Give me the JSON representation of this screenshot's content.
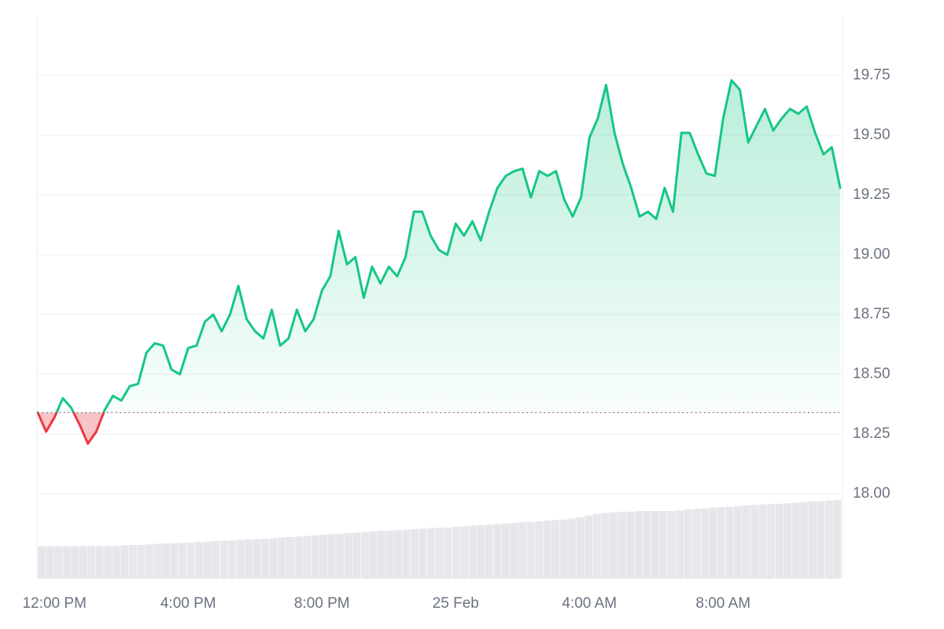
{
  "chart_data": {
    "type": "line",
    "categories": [
      null,
      null,
      "12:00 PM",
      null,
      null,
      null,
      null,
      null,
      null,
      null,
      null,
      null,
      null,
      null,
      null,
      null,
      null,
      null,
      "4:00 PM",
      null,
      null,
      null,
      null,
      null,
      null,
      null,
      null,
      null,
      null,
      null,
      null,
      null,
      null,
      null,
      "8:00 PM",
      null,
      null,
      null,
      null,
      null,
      null,
      null,
      null,
      null,
      null,
      null,
      null,
      null,
      null,
      null,
      "25 Feb",
      null,
      null,
      null,
      null,
      null,
      null,
      null,
      null,
      null,
      null,
      null,
      null,
      null,
      null,
      null,
      "4:00 AM",
      null,
      null,
      null,
      null,
      null,
      null,
      null,
      null,
      null,
      null,
      null,
      null,
      null,
      null,
      null,
      "8:00 AM",
      null,
      null,
      null,
      null,
      null,
      null,
      null,
      null,
      null,
      null,
      null,
      null,
      null,
      null
    ],
    "series": [
      {
        "values": [
          18.34,
          18.26,
          18.32,
          18.4,
          18.36,
          18.29,
          18.21,
          18.26,
          18.35,
          18.41,
          18.39,
          18.45,
          18.46,
          18.59,
          18.63,
          18.62,
          18.52,
          18.5,
          18.61,
          18.62,
          18.72,
          18.75,
          18.68,
          18.75,
          18.87,
          18.73,
          18.68,
          18.65,
          18.77,
          18.62,
          18.65,
          18.77,
          18.68,
          18.73,
          18.85,
          18.91,
          19.1,
          18.96,
          18.99,
          18.82,
          18.95,
          18.88,
          18.95,
          18.91,
          18.99,
          19.18,
          19.18,
          19.08,
          19.02,
          19.0,
          19.13,
          19.08,
          19.14,
          19.06,
          19.18,
          19.28,
          19.33,
          19.35,
          19.36,
          19.24,
          19.35,
          19.33,
          19.35,
          19.23,
          19.16,
          19.24,
          19.49,
          19.57,
          19.71,
          19.51,
          19.38,
          19.28,
          19.16,
          19.18,
          19.15,
          19.28,
          19.18,
          19.51,
          19.51,
          19.42,
          19.34,
          19.33,
          19.57,
          19.73,
          19.69,
          19.47,
          19.54,
          19.61,
          19.52,
          19.57,
          19.61,
          19.59,
          19.62,
          19.51,
          19.42,
          19.45,
          19.28
        ]
      },
      {
        "axis": "y2",
        "color": "#e5e7eb",
        "values": [
          11.5,
          11.5,
          11.5,
          11.5,
          11.5,
          11.6,
          11.6,
          11.6,
          11.6,
          11.6,
          11.8,
          12,
          12,
          12.2,
          12.4,
          12.5,
          12.6,
          12.7,
          12.8,
          13,
          13.2,
          13.4,
          13.5,
          13.6,
          13.8,
          14,
          14,
          14.2,
          14.4,
          14.6,
          14.8,
          15,
          15.2,
          15.4,
          15.6,
          15.8,
          16,
          16.2,
          16.4,
          16.6,
          16.8,
          17,
          17.1,
          17.2,
          17.4,
          17.6,
          17.8,
          18,
          18.1,
          18.2,
          18.4,
          18.6,
          18.8,
          19,
          19.2,
          19.4,
          19.6,
          19.8,
          20,
          20.2,
          20.4,
          20.6,
          20.8,
          21,
          21.4,
          21.8,
          22.4,
          23,
          23.4,
          23.6,
          23.8,
          23.8,
          24,
          24,
          24,
          24,
          24,
          24.2,
          24.6,
          24.8,
          25,
          25.2,
          25.4,
          25.6,
          25.8,
          26,
          26.2,
          26.4,
          26.5,
          26.6,
          26.8,
          27,
          27.2,
          27.4,
          27.5,
          27.7,
          27.9
        ]
      }
    ],
    "baseline": 18.34,
    "up_color": "#16c784",
    "down_color": "#ea3943",
    "ylim": [
      17.645,
      20.0
    ],
    "yticks": [
      {
        "value": 18,
        "label": "18.00"
      },
      18.25,
      {
        "value": 18.5,
        "label": "18.50"
      },
      18.75,
      {
        "value": 19,
        "label": "19.00"
      },
      19.25,
      {
        "value": 19.5,
        "label": "19.50"
      },
      19.75
    ],
    "y2lim": [
      0,
      200
    ],
    "grid": true
  }
}
